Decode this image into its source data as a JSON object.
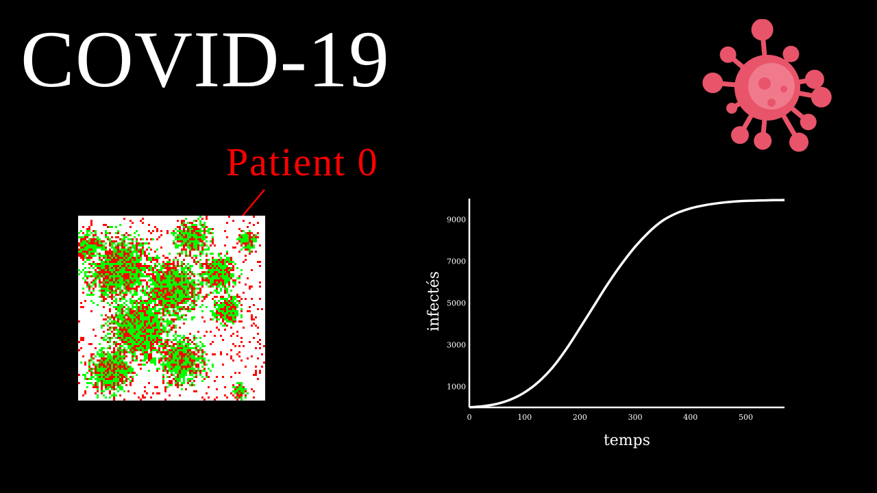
{
  "title": "COVID-19",
  "annotation": "Patient 0",
  "colors": {
    "background": "#000000",
    "title": "#ffffff",
    "annotation": "#ff0000",
    "infected": "#ff0000",
    "recovered": "#00ff00",
    "susceptible": "#ffffff",
    "virus": "#e8546a",
    "curve": "#ffffff"
  },
  "icons": {
    "virus": "virus-icon"
  },
  "grid": {
    "description_states": [
      "susceptible",
      "infected",
      "recovered"
    ]
  },
  "chart_data": {
    "type": "line",
    "xlabel": "temps",
    "ylabel": "infectés",
    "xlim": [
      0,
      570
    ],
    "ylim": [
      0,
      10000
    ],
    "xticks": [
      0,
      100,
      200,
      300,
      400,
      500
    ],
    "yticks": [
      1000,
      3000,
      5000,
      7000,
      9000
    ],
    "grid": false,
    "series": [
      {
        "x": [
          0,
          25,
          50,
          75,
          100,
          125,
          150,
          175,
          200,
          225,
          250,
          275,
          300,
          325,
          350,
          375,
          400,
          425,
          450,
          475,
          500,
          525,
          550,
          570
        ],
        "values": [
          5,
          60,
          170,
          380,
          720,
          1220,
          1900,
          2780,
          3800,
          4850,
          5900,
          6850,
          7700,
          8400,
          8950,
          9300,
          9530,
          9680,
          9780,
          9850,
          9890,
          9910,
          9925,
          9930
        ]
      }
    ]
  }
}
